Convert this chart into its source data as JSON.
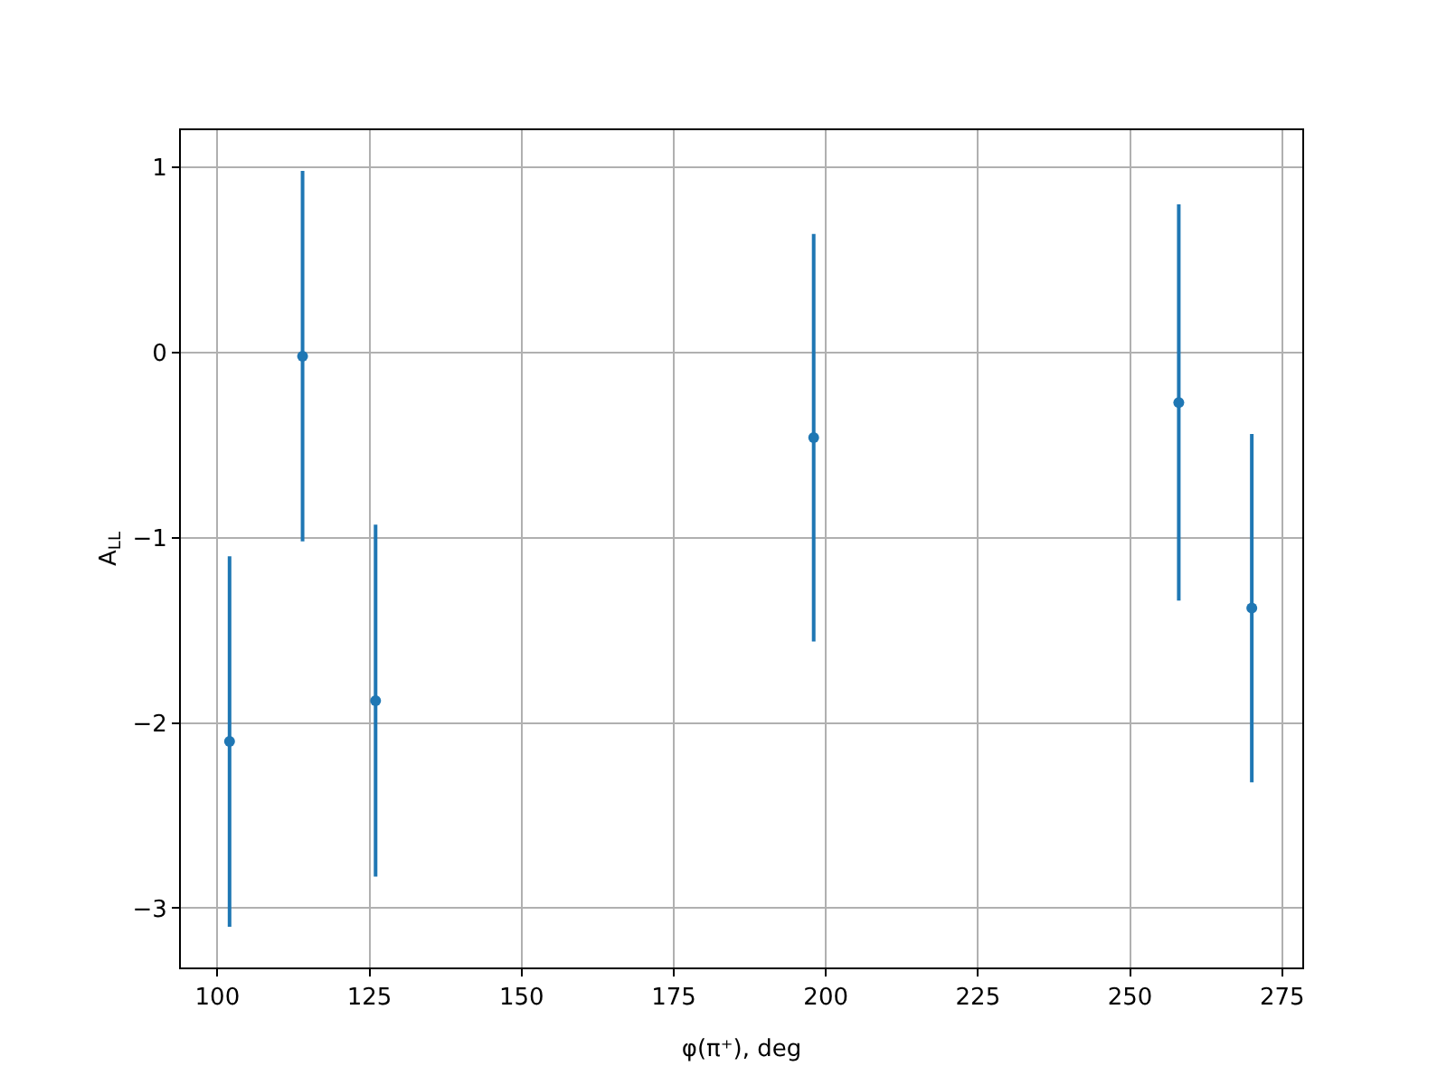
{
  "chart_data": {
    "type": "scatter",
    "xlabel": "φ(π⁺), deg",
    "ylabel": "A$_{LL}$",
    "x": [
      102,
      114,
      126,
      198,
      258,
      270
    ],
    "series": [
      {
        "color": "#1f77b4",
        "values": [
          -2.1,
          -0.02,
          -1.88,
          -0.46,
          -0.27,
          -1.38
        ],
        "errors": [
          1.0,
          1.0,
          0.95,
          1.1,
          1.07,
          0.94
        ]
      }
    ],
    "xlim": [
      94,
      278.3
    ],
    "ylim": [
      -3.32,
      1.2
    ],
    "xticks": [
      100,
      125,
      150,
      175,
      200,
      225,
      250,
      275
    ],
    "yticks": [
      {
        "value": -3,
        "label": "−3"
      },
      {
        "value": -2,
        "label": "−2"
      },
      {
        "value": -1,
        "label": "−1"
      },
      0,
      1
    ],
    "grid": true,
    "marker": "circle"
  }
}
